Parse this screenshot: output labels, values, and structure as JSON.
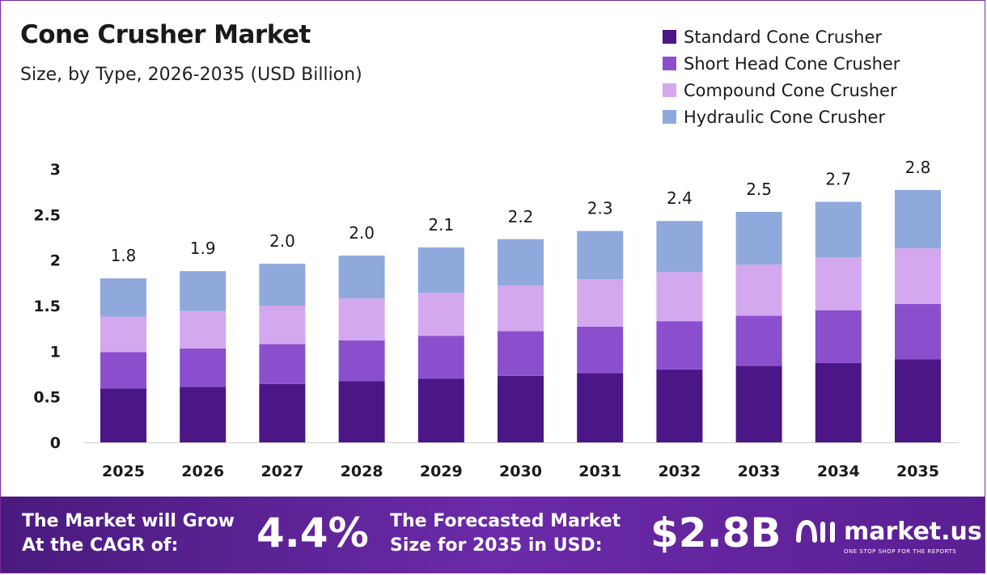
{
  "header": {
    "title": "Cone Crusher Market",
    "subtitle": "Size, by Type, 2026-2035 (USD Billion)"
  },
  "legend": [
    {
      "label": "Standard Cone Crusher",
      "color": "#4b1685"
    },
    {
      "label": "Short Head Cone Crusher",
      "color": "#8b4fce"
    },
    {
      "label": "Compound Cone Crusher",
      "color": "#d4a8ee"
    },
    {
      "label": "Hydraulic Cone Crusher",
      "color": "#8fa9dc"
    }
  ],
  "chart_data": {
    "type": "bar",
    "stacked": true,
    "title": "Cone Crusher Market",
    "subtitle": "Size, by Type, 2026-2035 (USD Billion)",
    "categories": [
      "2025",
      "2026",
      "2027",
      "2028",
      "2029",
      "2030",
      "2031",
      "2032",
      "2033",
      "2034",
      "2035"
    ],
    "series": [
      {
        "name": "Standard Cone Crusher",
        "color": "#4b1685",
        "values": [
          0.59,
          0.61,
          0.64,
          0.67,
          0.7,
          0.73,
          0.76,
          0.8,
          0.84,
          0.87,
          0.91
        ]
      },
      {
        "name": "Short Head Cone Crusher",
        "color": "#8b4fce",
        "values": [
          0.4,
          0.42,
          0.44,
          0.45,
          0.47,
          0.49,
          0.51,
          0.53,
          0.55,
          0.58,
          0.61
        ]
      },
      {
        "name": "Compound Cone Crusher",
        "color": "#d4a8ee",
        "values": [
          0.39,
          0.41,
          0.42,
          0.46,
          0.47,
          0.5,
          0.52,
          0.54,
          0.56,
          0.58,
          0.61
        ]
      },
      {
        "name": "Hydraulic Cone Crusher",
        "color": "#8fa9dc",
        "values": [
          0.42,
          0.44,
          0.46,
          0.47,
          0.5,
          0.51,
          0.53,
          0.56,
          0.58,
          0.61,
          0.64
        ]
      }
    ],
    "totals_labels": [
      "1.8",
      "1.9",
      "2.0",
      "2.0",
      "2.1",
      "2.2",
      "2.3",
      "2.4",
      "2.5",
      "2.7",
      "2.8"
    ],
    "yticks": [
      "0",
      "0.5",
      "1",
      "1.5",
      "2",
      "2.5",
      "3"
    ],
    "ylim": [
      0,
      3
    ],
    "xlabel": "",
    "ylabel": "",
    "grid": false,
    "legend_position": "top-right"
  },
  "footer": {
    "cagr_text_line1": "The Market will Grow",
    "cagr_text_line2": "At the CAGR of:",
    "cagr_value": "4.4%",
    "forecast_text_line1": "The Forecasted Market",
    "forecast_text_line2": "Size for 2035 in USD:",
    "forecast_value": "$2.8B",
    "brand_name": "market.us",
    "brand_tagline": "ONE STOP SHOP FOR THE REPORTS"
  }
}
